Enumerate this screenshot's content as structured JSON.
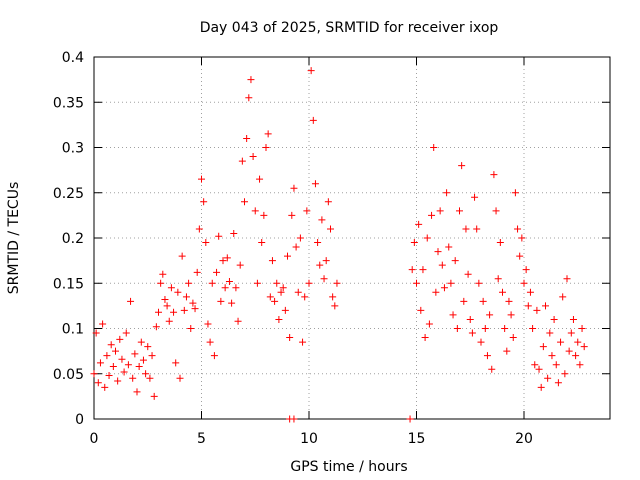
{
  "chart_data": {
    "type": "scatter",
    "title": "Day 043 of 2025, SRMTID for receiver ixop",
    "xlabel": "GPS time / hours",
    "ylabel": "SRMTID / TECUs",
    "xlim": [
      0,
      24
    ],
    "ylim": [
      0,
      0.4
    ],
    "xticks": [
      0,
      5,
      10,
      15,
      20
    ],
    "xtick_labels": [
      "0",
      "5",
      "10",
      "15",
      "20"
    ],
    "yticks": [
      0,
      0.05,
      0.1,
      0.15,
      0.2,
      0.25,
      0.3,
      0.35,
      0.4
    ],
    "ytick_labels": [
      "0",
      "0.05",
      "0.1",
      "0.15",
      "0.2",
      "0.25",
      "0.3",
      "0.35",
      "0.4"
    ],
    "grid": true,
    "marker": "+",
    "color": "#ff0000",
    "series": [
      {
        "name": "SRMTID",
        "points": [
          [
            0.0,
            0.05
          ],
          [
            0.1,
            0.095
          ],
          [
            0.2,
            0.04
          ],
          [
            0.3,
            0.062
          ],
          [
            0.4,
            0.105
          ],
          [
            0.5,
            0.035
          ],
          [
            0.6,
            0.07
          ],
          [
            0.7,
            0.048
          ],
          [
            0.8,
            0.082
          ],
          [
            0.9,
            0.058
          ],
          [
            1.0,
            0.075
          ],
          [
            1.1,
            0.042
          ],
          [
            1.2,
            0.088
          ],
          [
            1.3,
            0.066
          ],
          [
            1.4,
            0.052
          ],
          [
            1.5,
            0.095
          ],
          [
            1.6,
            0.06
          ],
          [
            1.7,
            0.13
          ],
          [
            1.8,
            0.045
          ],
          [
            1.9,
            0.072
          ],
          [
            2.0,
            0.03
          ],
          [
            2.1,
            0.058
          ],
          [
            2.2,
            0.085
          ],
          [
            2.3,
            0.065
          ],
          [
            2.4,
            0.05
          ],
          [
            2.5,
            0.08
          ],
          [
            2.6,
            0.045
          ],
          [
            2.7,
            0.07
          ],
          [
            2.8,
            0.025
          ],
          [
            2.9,
            0.102
          ],
          [
            3.0,
            0.118
          ],
          [
            3.1,
            0.15
          ],
          [
            3.2,
            0.16
          ],
          [
            3.3,
            0.132
          ],
          [
            3.4,
            0.125
          ],
          [
            3.5,
            0.108
          ],
          [
            3.6,
            0.145
          ],
          [
            3.7,
            0.118
          ],
          [
            3.8,
            0.062
          ],
          [
            3.9,
            0.14
          ],
          [
            4.0,
            0.045
          ],
          [
            4.1,
            0.18
          ],
          [
            4.2,
            0.12
          ],
          [
            4.3,
            0.135
          ],
          [
            4.4,
            0.15
          ],
          [
            4.5,
            0.1
          ],
          [
            4.6,
            0.128
          ],
          [
            4.7,
            0.122
          ],
          [
            4.8,
            0.162
          ],
          [
            4.9,
            0.21
          ],
          [
            5.0,
            0.265
          ],
          [
            5.1,
            0.24
          ],
          [
            5.2,
            0.195
          ],
          [
            5.3,
            0.105
          ],
          [
            5.4,
            0.085
          ],
          [
            5.5,
            0.15
          ],
          [
            5.6,
            0.07
          ],
          [
            5.7,
            0.162
          ],
          [
            5.8,
            0.202
          ],
          [
            5.9,
            0.13
          ],
          [
            6.0,
            0.175
          ],
          [
            6.1,
            0.145
          ],
          [
            6.2,
            0.178
          ],
          [
            6.3,
            0.152
          ],
          [
            6.4,
            0.128
          ],
          [
            6.5,
            0.205
          ],
          [
            6.6,
            0.145
          ],
          [
            6.7,
            0.108
          ],
          [
            6.8,
            0.17
          ],
          [
            6.9,
            0.285
          ],
          [
            7.0,
            0.24
          ],
          [
            7.1,
            0.31
          ],
          [
            7.2,
            0.355
          ],
          [
            7.3,
            0.375
          ],
          [
            7.4,
            0.29
          ],
          [
            7.5,
            0.23
          ],
          [
            7.6,
            0.15
          ],
          [
            7.7,
            0.265
          ],
          [
            7.8,
            0.195
          ],
          [
            7.9,
            0.225
          ],
          [
            8.0,
            0.3
          ],
          [
            8.1,
            0.315
          ],
          [
            8.2,
            0.135
          ],
          [
            8.3,
            0.175
          ],
          [
            8.4,
            0.13
          ],
          [
            8.5,
            0.15
          ],
          [
            8.6,
            0.11
          ],
          [
            8.7,
            0.14
          ],
          [
            8.8,
            0.145
          ],
          [
            8.9,
            0.12
          ],
          [
            9.0,
            0.18
          ],
          [
            9.1,
            0.09
          ],
          [
            9.2,
            0.225
          ],
          [
            9.3,
            0.255
          ],
          [
            9.4,
            0.19
          ],
          [
            9.5,
            0.14
          ],
          [
            9.6,
            0.2
          ],
          [
            9.7,
            0.085
          ],
          [
            9.8,
            0.135
          ],
          [
            9.9,
            0.23
          ],
          [
            10.0,
            0.15
          ],
          [
            10.1,
            0.385
          ],
          [
            10.2,
            0.33
          ],
          [
            10.3,
            0.26
          ],
          [
            10.4,
            0.195
          ],
          [
            10.5,
            0.17
          ],
          [
            10.6,
            0.22
          ],
          [
            10.7,
            0.155
          ],
          [
            10.8,
            0.175
          ],
          [
            10.9,
            0.24
          ],
          [
            11.0,
            0.21
          ],
          [
            11.1,
            0.135
          ],
          [
            11.2,
            0.125
          ],
          [
            11.3,
            0.15
          ],
          [
            14.8,
            0.165
          ],
          [
            14.9,
            0.195
          ],
          [
            15.0,
            0.15
          ],
          [
            15.1,
            0.215
          ],
          [
            15.2,
            0.12
          ],
          [
            15.3,
            0.165
          ],
          [
            15.4,
            0.09
          ],
          [
            15.5,
            0.2
          ],
          [
            15.6,
            0.105
          ],
          [
            15.7,
            0.225
          ],
          [
            15.8,
            0.3
          ],
          [
            15.9,
            0.14
          ],
          [
            16.0,
            0.185
          ],
          [
            16.1,
            0.23
          ],
          [
            16.2,
            0.17
          ],
          [
            16.3,
            0.145
          ],
          [
            16.4,
            0.25
          ],
          [
            16.5,
            0.19
          ],
          [
            16.6,
            0.15
          ],
          [
            16.7,
            0.115
          ],
          [
            16.8,
            0.175
          ],
          [
            16.9,
            0.1
          ],
          [
            17.0,
            0.23
          ],
          [
            17.1,
            0.28
          ],
          [
            17.2,
            0.13
          ],
          [
            17.3,
            0.21
          ],
          [
            17.4,
            0.16
          ],
          [
            17.5,
            0.11
          ],
          [
            17.6,
            0.095
          ],
          [
            17.7,
            0.245
          ],
          [
            17.8,
            0.21
          ],
          [
            17.9,
            0.15
          ],
          [
            18.0,
            0.085
          ],
          [
            18.1,
            0.13
          ],
          [
            18.2,
            0.1
          ],
          [
            18.3,
            0.07
          ],
          [
            18.4,
            0.115
          ],
          [
            18.5,
            0.055
          ],
          [
            18.6,
            0.27
          ],
          [
            18.7,
            0.23
          ],
          [
            18.8,
            0.155
          ],
          [
            18.9,
            0.195
          ],
          [
            19.0,
            0.14
          ],
          [
            19.1,
            0.1
          ],
          [
            19.2,
            0.075
          ],
          [
            19.3,
            0.13
          ],
          [
            19.4,
            0.115
          ],
          [
            19.5,
            0.09
          ],
          [
            19.6,
            0.25
          ],
          [
            19.7,
            0.21
          ],
          [
            19.8,
            0.18
          ],
          [
            19.9,
            0.2
          ],
          [
            20.0,
            0.15
          ],
          [
            20.1,
            0.165
          ],
          [
            20.2,
            0.125
          ],
          [
            20.3,
            0.14
          ],
          [
            20.4,
            0.1
          ],
          [
            20.5,
            0.06
          ],
          [
            20.6,
            0.12
          ],
          [
            20.7,
            0.055
          ],
          [
            20.8,
            0.035
          ],
          [
            20.9,
            0.08
          ],
          [
            21.0,
            0.125
          ],
          [
            21.1,
            0.045
          ],
          [
            21.2,
            0.095
          ],
          [
            21.3,
            0.07
          ],
          [
            21.4,
            0.11
          ],
          [
            21.5,
            0.06
          ],
          [
            21.6,
            0.04
          ],
          [
            21.7,
            0.085
          ],
          [
            21.8,
            0.135
          ],
          [
            21.9,
            0.05
          ],
          [
            22.0,
            0.155
          ],
          [
            22.1,
            0.075
          ],
          [
            22.2,
            0.095
          ],
          [
            22.3,
            0.11
          ],
          [
            22.4,
            0.07
          ],
          [
            22.5,
            0.085
          ],
          [
            22.6,
            0.06
          ],
          [
            22.7,
            0.1
          ],
          [
            22.8,
            0.08
          ],
          [
            9.1,
            0.0
          ],
          [
            9.3,
            0.0
          ],
          [
            14.7,
            0.0
          ]
        ]
      }
    ]
  }
}
